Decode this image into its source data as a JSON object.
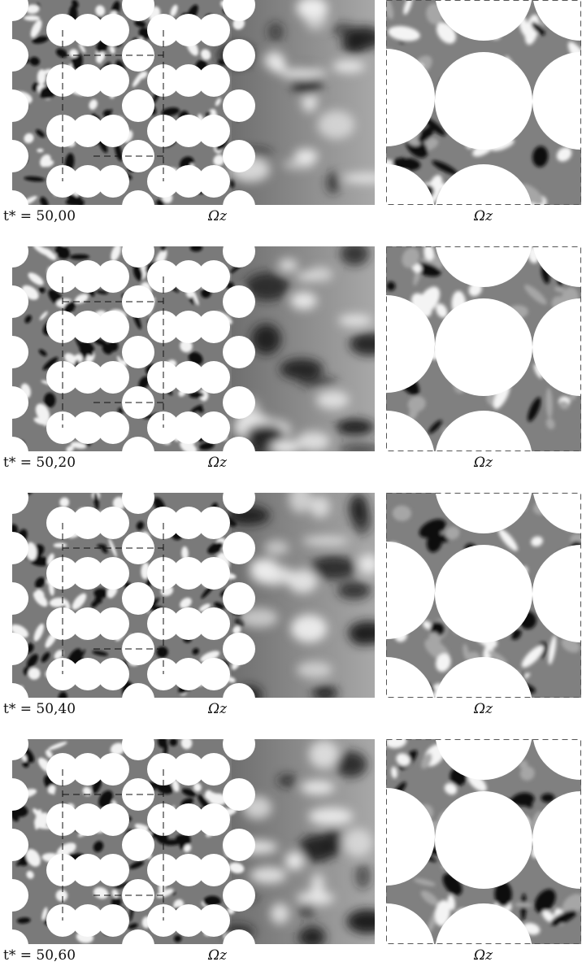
{
  "rows": [
    {
      "time_label": "t* = 50,00",
      "omega_left": "Ωz",
      "omega_right": "Ωz"
    },
    {
      "time_label": "t* = 50,20",
      "omega_left": "Ωz",
      "omega_right": "Ωz"
    },
    {
      "time_label": "t* = 50,40",
      "omega_left": "Ωz",
      "omega_right": "Ωz"
    },
    {
      "time_label": "t* = 50,60",
      "omega_left": "Ωz",
      "omega_right": "Ωz"
    }
  ],
  "colors": {
    "background": "#ffffff",
    "fluid_mid": "#7a7a7a",
    "vortex_dark": "#111111",
    "vortex_light": "#f2f2f2",
    "wake_gray": "#9a9a9a"
  }
}
